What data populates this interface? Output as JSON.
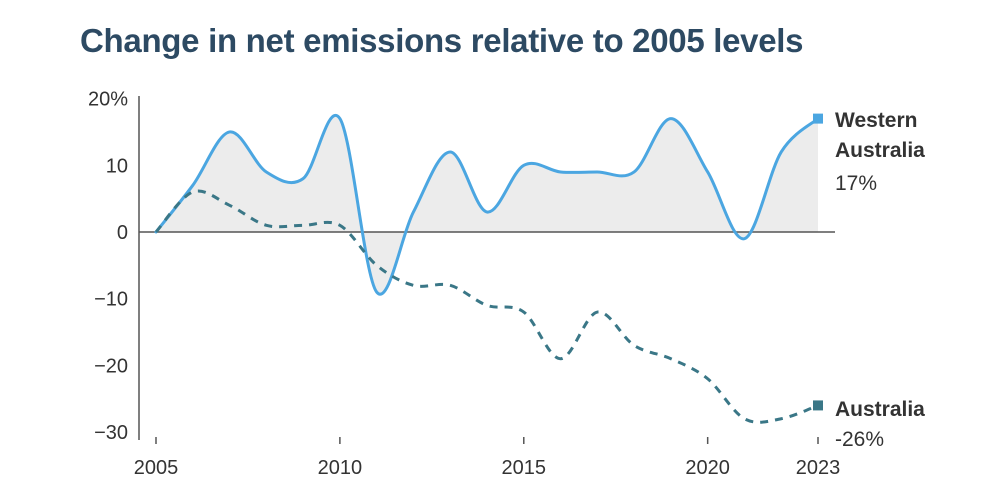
{
  "chart_data": {
    "type": "line",
    "title": "Change in net emissions relative to 2005 levels",
    "xlabel": "",
    "ylabel": "",
    "x": [
      2005,
      2006,
      2007,
      2008,
      2009,
      2010,
      2011,
      2012,
      2013,
      2014,
      2015,
      2016,
      2017,
      2018,
      2019,
      2020,
      2021,
      2022,
      2023
    ],
    "xlim": [
      2005,
      2023
    ],
    "ylim": [
      -30,
      20
    ],
    "x_ticks": [
      "2005",
      "2010",
      "2015",
      "2020",
      "2023"
    ],
    "x_tick_values": [
      2005,
      2010,
      2015,
      2020,
      2023
    ],
    "y_ticks": [
      "20%",
      "10",
      "0",
      "−10",
      "−20",
      "−30"
    ],
    "y_tick_values": [
      20,
      10,
      0,
      -10,
      -20,
      -30
    ],
    "grid": false,
    "legend": "direct labels at right",
    "series": [
      {
        "name": "Western Australia",
        "label_line1": "Western",
        "label_line2": "Australia",
        "end_label": "17%",
        "color": "#4ba6e1",
        "style": "solid",
        "fill": "#ececec",
        "values": [
          0,
          7,
          15,
          9,
          8,
          17,
          -9,
          3,
          12,
          3,
          10,
          9,
          9,
          9,
          17,
          9,
          -1,
          12,
          17
        ]
      },
      {
        "name": "Australia",
        "end_label": "-26%",
        "color": "#3a7787",
        "style": "dashed",
        "values": [
          0,
          6,
          4,
          1,
          1,
          1,
          -5,
          -8,
          -8,
          -11,
          -12,
          -19,
          -12,
          -17,
          -19,
          -22,
          -28,
          -28,
          -26
        ]
      }
    ]
  }
}
